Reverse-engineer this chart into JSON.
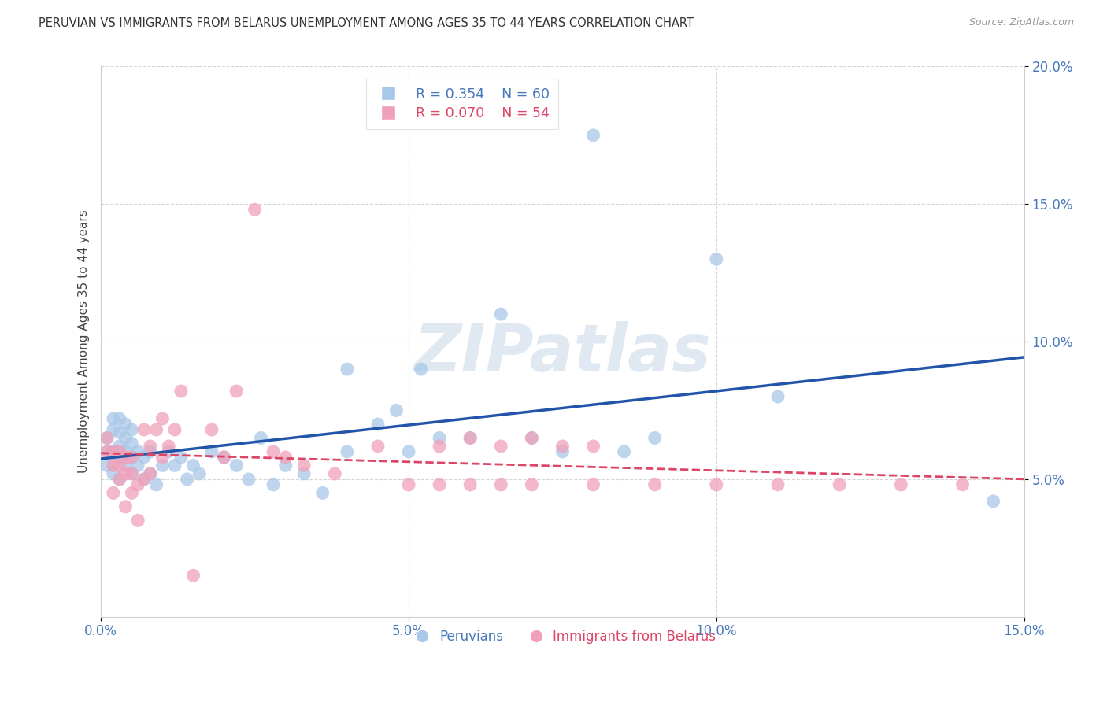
{
  "title": "PERUVIAN VS IMMIGRANTS FROM BELARUS UNEMPLOYMENT AMONG AGES 35 TO 44 YEARS CORRELATION CHART",
  "source": "Source: ZipAtlas.com",
  "ylabel": "Unemployment Among Ages 35 to 44 years",
  "xlim": [
    0,
    0.15
  ],
  "ylim": [
    0,
    0.2
  ],
  "xticks": [
    0.0,
    0.05,
    0.1,
    0.15
  ],
  "xticklabels": [
    "0.0%",
    "5.0%",
    "10.0%",
    "15.0%"
  ],
  "yticks": [
    0.05,
    0.1,
    0.15,
    0.2
  ],
  "yticklabels": [
    "5.0%",
    "10.0%",
    "15.0%",
    "20.0%"
  ],
  "peruvian_R": "0.354",
  "peruvian_N": "60",
  "belarus_R": "0.070",
  "belarus_N": "54",
  "peruvian_color": "#a8c8e8",
  "belarus_color": "#f0a0b8",
  "peruvian_line_color": "#2255aa",
  "belarus_line_color": "#dd4466",
  "legend_label_1": "Peruvians",
  "legend_label_2": "Immigrants from Belarus",
  "peruvians_x": [
    0.001,
    0.001,
    0.001,
    0.002,
    0.002,
    0.002,
    0.002,
    0.003,
    0.003,
    0.003,
    0.003,
    0.003,
    0.004,
    0.004,
    0.004,
    0.004,
    0.005,
    0.005,
    0.005,
    0.005,
    0.006,
    0.006,
    0.007,
    0.007,
    0.008,
    0.008,
    0.009,
    0.01,
    0.011,
    0.012,
    0.013,
    0.014,
    0.015,
    0.016,
    0.018,
    0.02,
    0.022,
    0.024,
    0.026,
    0.028,
    0.03,
    0.033,
    0.036,
    0.04,
    0.04,
    0.045,
    0.048,
    0.05,
    0.052,
    0.055,
    0.06,
    0.065,
    0.07,
    0.075,
    0.08,
    0.085,
    0.09,
    0.1,
    0.11,
    0.145
  ],
  "peruvians_y": [
    0.06,
    0.055,
    0.065,
    0.052,
    0.06,
    0.068,
    0.072,
    0.05,
    0.058,
    0.062,
    0.067,
    0.072,
    0.055,
    0.06,
    0.065,
    0.07,
    0.052,
    0.058,
    0.063,
    0.068,
    0.055,
    0.06,
    0.05,
    0.058,
    0.052,
    0.06,
    0.048,
    0.055,
    0.06,
    0.055,
    0.058,
    0.05,
    0.055,
    0.052,
    0.06,
    0.058,
    0.055,
    0.05,
    0.065,
    0.048,
    0.055,
    0.052,
    0.045,
    0.06,
    0.09,
    0.07,
    0.075,
    0.06,
    0.09,
    0.065,
    0.065,
    0.11,
    0.065,
    0.06,
    0.175,
    0.06,
    0.065,
    0.13,
    0.08,
    0.042
  ],
  "belarus_x": [
    0.001,
    0.001,
    0.002,
    0.002,
    0.002,
    0.003,
    0.003,
    0.003,
    0.004,
    0.004,
    0.004,
    0.005,
    0.005,
    0.005,
    0.006,
    0.006,
    0.007,
    0.007,
    0.008,
    0.008,
    0.009,
    0.01,
    0.01,
    0.011,
    0.012,
    0.013,
    0.015,
    0.018,
    0.02,
    0.022,
    0.025,
    0.028,
    0.03,
    0.033,
    0.038,
    0.045,
    0.05,
    0.055,
    0.06,
    0.065,
    0.07,
    0.08,
    0.09,
    0.1,
    0.11,
    0.12,
    0.13,
    0.14,
    0.055,
    0.06,
    0.065,
    0.07,
    0.075,
    0.08
  ],
  "belarus_y": [
    0.06,
    0.065,
    0.045,
    0.055,
    0.06,
    0.05,
    0.055,
    0.06,
    0.04,
    0.052,
    0.058,
    0.045,
    0.052,
    0.058,
    0.035,
    0.048,
    0.05,
    0.068,
    0.052,
    0.062,
    0.068,
    0.058,
    0.072,
    0.062,
    0.068,
    0.082,
    0.015,
    0.068,
    0.058,
    0.082,
    0.148,
    0.06,
    0.058,
    0.055,
    0.052,
    0.062,
    0.048,
    0.048,
    0.048,
    0.048,
    0.048,
    0.048,
    0.048,
    0.048,
    0.048,
    0.048,
    0.048,
    0.048,
    0.062,
    0.065,
    0.062,
    0.065,
    0.062,
    0.062
  ]
}
